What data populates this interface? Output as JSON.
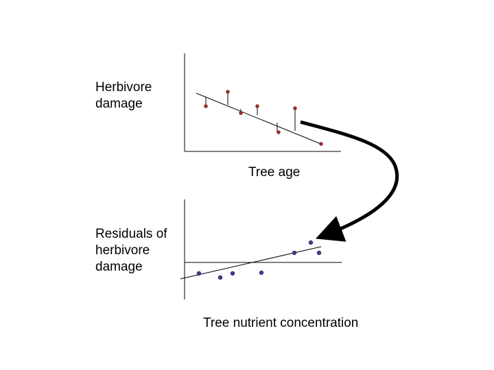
{
  "top_plot": {
    "ylabel": "Herbivore\ndamage",
    "xlabel": "Tree age",
    "point_color": "#b22222"
  },
  "bottom_plot": {
    "ylabel": "Residuals of\nherbivore\ndamage",
    "xlabel": "Tree nutrient concentration",
    "point_color": "#3b3b9c"
  },
  "arrow": {
    "color": "#000000"
  }
}
